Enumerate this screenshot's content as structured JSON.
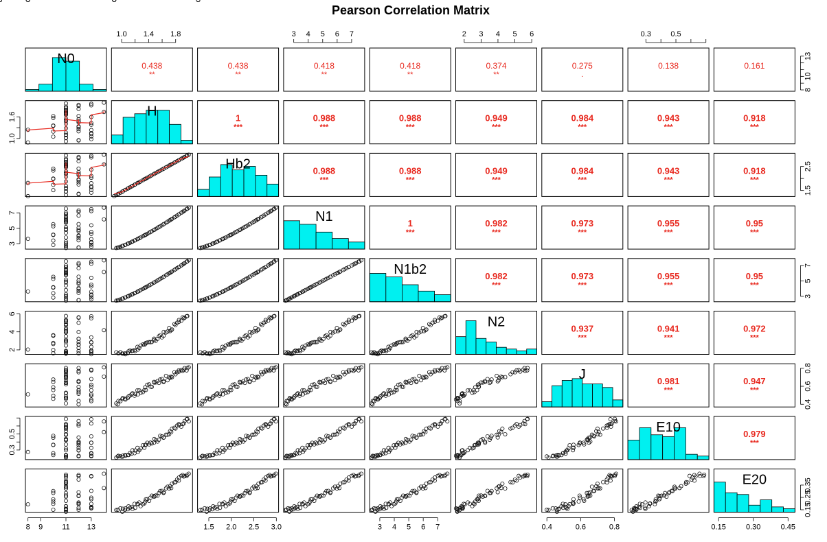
{
  "chart_data": {
    "type": "scatter",
    "title": "Pearson Correlation Matrix",
    "variables": [
      {
        "name": "N0",
        "range": [
          7.8,
          14.2
        ],
        "ticks": [
          "8",
          "9",
          "11",
          "13"
        ],
        "tick_values": [
          8,
          9,
          11,
          13
        ],
        "axis": "bottom"
      },
      {
        "name": "H",
        "range": [
          0.85,
          2.05
        ],
        "ticks": [
          "1.0",
          "1.4",
          "1.8"
        ],
        "tick_values": [
          1.0,
          1.4,
          1.8
        ],
        "minor_ticks": [
          1.2,
          1.6
        ],
        "axis": "top",
        "side_ticks": [
          "1.0",
          "1.6"
        ],
        "side_tick_values": [
          1.0,
          1.6
        ],
        "side_minor_ticks": [
          1.3
        ],
        "side_axis": "left"
      },
      {
        "name": "Hb2",
        "range": [
          1.25,
          3.05
        ],
        "ticks": [
          "1.5",
          "2.0",
          "2.5",
          "3.0"
        ],
        "tick_values": [
          1.5,
          2.0,
          2.5,
          3.0
        ],
        "axis": "bottom",
        "side_ticks": [
          "1.5",
          "2.5"
        ],
        "side_tick_values": [
          1.5,
          2.5
        ],
        "side_minor_ticks": [
          2.0
        ],
        "side_axis": "right"
      },
      {
        "name": "N1",
        "range": [
          2.3,
          7.9
        ],
        "ticks": [
          "3",
          "4",
          "5",
          "6",
          "7"
        ],
        "tick_values": [
          3,
          4,
          5,
          6,
          7
        ],
        "axis": "top",
        "side_ticks": [
          "3",
          "5",
          "7"
        ],
        "side_tick_values": [
          3,
          5,
          7
        ],
        "side_axis": "left"
      },
      {
        "name": "N1b2",
        "range": [
          2.3,
          7.9
        ],
        "ticks": [
          "3",
          "4",
          "5",
          "6",
          "7"
        ],
        "tick_values": [
          3,
          4,
          5,
          6,
          7
        ],
        "axis": "bottom",
        "side_ticks": [
          "3",
          "5",
          "7"
        ],
        "side_tick_values": [
          3,
          5,
          7
        ],
        "side_axis": "right"
      },
      {
        "name": "N2",
        "range": [
          1.5,
          6.3
        ],
        "ticks": [
          "2",
          "3",
          "4",
          "5",
          "6"
        ],
        "tick_values": [
          2,
          3,
          4,
          5,
          6
        ],
        "axis": "top",
        "side_ticks": [
          "2",
          "4",
          "6"
        ],
        "side_tick_values": [
          2,
          4,
          6
        ],
        "side_axis": "left"
      },
      {
        "name": "J",
        "range": [
          0.37,
          0.85
        ],
        "ticks": [
          "0.4",
          "0.6",
          "0.8"
        ],
        "tick_values": [
          0.4,
          0.6,
          0.8
        ],
        "axis": "bottom",
        "side_ticks": [
          "0.4",
          "0.6",
          "0.8"
        ],
        "side_tick_values": [
          0.4,
          0.6,
          0.8
        ],
        "side_axis": "right"
      },
      {
        "name": "E10",
        "range": [
          0.18,
          0.72
        ],
        "ticks": [
          "0.3",
          "0.5"
        ],
        "tick_values": [
          0.3,
          0.5
        ],
        "minor_ticks": [
          0.4,
          0.6,
          0.7
        ],
        "axis": "top",
        "side_ticks": [
          "0.3",
          "0.5"
        ],
        "side_tick_values": [
          0.3,
          0.5
        ],
        "side_minor_ticks": [
          0.4,
          0.6,
          0.7
        ],
        "side_axis": "left"
      },
      {
        "name": "E20",
        "range": [
          0.13,
          0.48
        ],
        "ticks": [
          "0.15",
          "0.30",
          "0.45"
        ],
        "tick_values": [
          0.15,
          0.3,
          0.45
        ],
        "axis": "bottom",
        "side_ticks": [
          "0.15",
          "0.25",
          "0.35"
        ],
        "side_tick_values": [
          0.15,
          0.25,
          0.35
        ],
        "side_axis": "right"
      }
    ],
    "n0_side": {
      "ticks": [
        "8",
        "10",
        "13"
      ],
      "tick_values": [
        8,
        10,
        13
      ],
      "minor_ticks": [
        9,
        11,
        12
      ],
      "range": [
        7.8,
        14.2
      ],
      "axis": "right"
    },
    "correlations": [
      {
        "row": 0,
        "col": 1,
        "r": "0.438",
        "stars": "**"
      },
      {
        "row": 0,
        "col": 2,
        "r": "0.438",
        "stars": "**"
      },
      {
        "row": 0,
        "col": 3,
        "r": "0.418",
        "stars": "**"
      },
      {
        "row": 0,
        "col": 4,
        "r": "0.418",
        "stars": "**"
      },
      {
        "row": 0,
        "col": 5,
        "r": "0.374",
        "stars": "**"
      },
      {
        "row": 0,
        "col": 6,
        "r": "0.275",
        "stars": "."
      },
      {
        "row": 0,
        "col": 7,
        "r": "0.138",
        "stars": ""
      },
      {
        "row": 0,
        "col": 8,
        "r": "0.161",
        "stars": ""
      },
      {
        "row": 1,
        "col": 2,
        "r": "1",
        "stars": "***"
      },
      {
        "row": 1,
        "col": 3,
        "r": "0.988",
        "stars": "***"
      },
      {
        "row": 1,
        "col": 4,
        "r": "0.988",
        "stars": "***"
      },
      {
        "row": 1,
        "col": 5,
        "r": "0.949",
        "stars": "***"
      },
      {
        "row": 1,
        "col": 6,
        "r": "0.984",
        "stars": "***"
      },
      {
        "row": 1,
        "col": 7,
        "r": "0.943",
        "stars": "***"
      },
      {
        "row": 1,
        "col": 8,
        "r": "0.918",
        "stars": "***"
      },
      {
        "row": 2,
        "col": 3,
        "r": "0.988",
        "stars": "***"
      },
      {
        "row": 2,
        "col": 4,
        "r": "0.988",
        "stars": "***"
      },
      {
        "row": 2,
        "col": 5,
        "r": "0.949",
        "stars": "***"
      },
      {
        "row": 2,
        "col": 6,
        "r": "0.984",
        "stars": "***"
      },
      {
        "row": 2,
        "col": 7,
        "r": "0.943",
        "stars": "***"
      },
      {
        "row": 2,
        "col": 8,
        "r": "0.918",
        "stars": "***"
      },
      {
        "row": 3,
        "col": 4,
        "r": "1",
        "stars": "***"
      },
      {
        "row": 3,
        "col": 5,
        "r": "0.982",
        "stars": "***"
      },
      {
        "row": 3,
        "col": 6,
        "r": "0.973",
        "stars": "***"
      },
      {
        "row": 3,
        "col": 7,
        "r": "0.955",
        "stars": "***"
      },
      {
        "row": 3,
        "col": 8,
        "r": "0.95",
        "stars": "***"
      },
      {
        "row": 4,
        "col": 5,
        "r": "0.982",
        "stars": "***"
      },
      {
        "row": 4,
        "col": 6,
        "r": "0.973",
        "stars": "***"
      },
      {
        "row": 4,
        "col": 7,
        "r": "0.955",
        "stars": "***"
      },
      {
        "row": 4,
        "col": 8,
        "r": "0.95",
        "stars": "***"
      },
      {
        "row": 5,
        "col": 6,
        "r": "0.937",
        "stars": "***"
      },
      {
        "row": 5,
        "col": 7,
        "r": "0.941",
        "stars": "***"
      },
      {
        "row": 5,
        "col": 8,
        "r": "0.972",
        "stars": "***"
      },
      {
        "row": 6,
        "col": 7,
        "r": "0.981",
        "stars": "***"
      },
      {
        "row": 6,
        "col": 8,
        "r": "0.947",
        "stars": "***"
      },
      {
        "row": 7,
        "col": 8,
        "r": "0.979",
        "stars": "***"
      }
    ],
    "histograms": [
      [
        0.05,
        0.2,
        0.95,
        0.85,
        0.2,
        0.05
      ],
      [
        0.25,
        0.75,
        0.85,
        0.95,
        0.95,
        0.55,
        0.1
      ],
      [
        0.2,
        0.55,
        0.9,
        0.75,
        0.85,
        0.6,
        0.35
      ],
      [
        0.8,
        0.7,
        0.48,
        0.3,
        0.2
      ],
      [
        0.8,
        0.7,
        0.48,
        0.3,
        0.2
      ],
      [
        0.5,
        0.95,
        0.45,
        0.35,
        0.2,
        0.15,
        0.1,
        0.15
      ],
      [
        0.15,
        0.6,
        0.75,
        0.8,
        0.65,
        0.65,
        0.55,
        0.2
      ],
      [
        0.55,
        0.9,
        0.7,
        0.65,
        0.9,
        0.15,
        0.1
      ],
      [
        0.85,
        0.55,
        0.5,
        0.2,
        0.35,
        0.15,
        0.1
      ]
    ],
    "grid": false,
    "legend": "none"
  }
}
